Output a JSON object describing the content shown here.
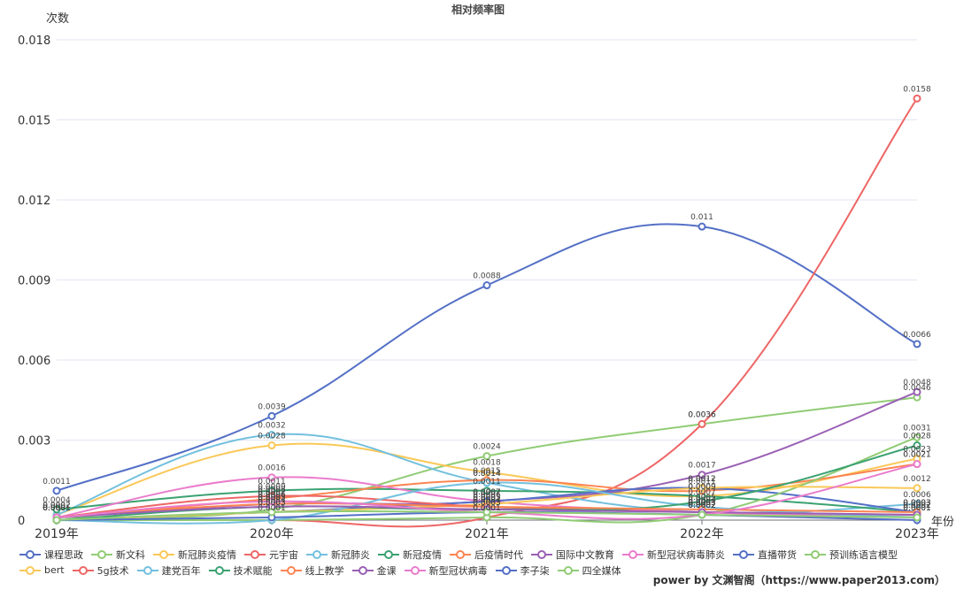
{
  "chart_data": {
    "type": "line",
    "title": "相对频率图",
    "ylabel": "次数",
    "xlabel": "年份",
    "categories": [
      "2019年",
      "2020年",
      "2021年",
      "2022年",
      "2023年"
    ],
    "yticks": [
      "0",
      "0.003",
      "0.006",
      "0.009",
      "0.012",
      "0.015",
      "0.018"
    ],
    "ylim": [
      0,
      0.018
    ],
    "series": [
      {
        "name": "课程思政",
        "color": "#5470c6",
        "values": [
          0.0011,
          0.0039,
          0.0088,
          0.011,
          0.0066
        ]
      },
      {
        "name": "新文科",
        "color": "#91cc75",
        "values": [
          0.0001,
          0.0004,
          0.0024,
          0.0036,
          0.0046
        ]
      },
      {
        "name": "新冠肺炎疫情",
        "color": "#fac858",
        "values": [
          0.0002,
          0.0028,
          0.0018,
          0.0009,
          0.0023
        ]
      },
      {
        "name": "元宇宙",
        "color": "#ee6666",
        "values": [
          0,
          0,
          0.0001,
          0.0036,
          0.0158
        ]
      },
      {
        "name": "新冠肺炎",
        "color": "#73c0de",
        "values": [
          0.0002,
          0.0032,
          0.0014,
          0.0003,
          0.0006
        ]
      },
      {
        "name": "新冠疫情",
        "color": "#3ba272",
        "values": [
          0.0004,
          0.0011,
          0.0011,
          0.0009,
          0.0003
        ]
      },
      {
        "name": "后疫情时代",
        "color": "#fc8452",
        "values": [
          0.0001,
          0.0008,
          0.0015,
          0.0011,
          0.0021
        ]
      },
      {
        "name": "国际中文教育",
        "color": "#9a60b4",
        "values": [
          0.0001,
          0.0006,
          0.0007,
          0.0017,
          0.0048
        ]
      },
      {
        "name": "新型冠状病毒肺炎",
        "color": "#ea7ccc",
        "values": [
          0.0001,
          0.0016,
          0.0007,
          0.0003,
          0.0001
        ]
      },
      {
        "name": "直播带货",
        "color": "#5470c6",
        "values": [
          0,
          0.0003,
          0.0007,
          0.0012,
          0.0003
        ]
      },
      {
        "name": "预训练语言模型",
        "color": "#91cc75",
        "values": [
          0,
          0,
          0.0001,
          0.0002,
          0.0031
        ]
      },
      {
        "name": "bert",
        "color": "#fac858",
        "values": [
          0,
          0.0003,
          0.0006,
          0.0012,
          0.0012
        ]
      },
      {
        "name": "5g技术",
        "color": "#ee6666",
        "values": [
          0.0001,
          0.0009,
          0.0005,
          0.0003,
          0.0002
        ]
      },
      {
        "name": "建党百年",
        "color": "#73c0de",
        "values": [
          0,
          0,
          0.0014,
          0.0005,
          0.0001
        ]
      },
      {
        "name": "技术赋能",
        "color": "#3ba272",
        "values": [
          0,
          0.0005,
          0.0004,
          0.0007,
          0.0028
        ]
      },
      {
        "name": "线上教学",
        "color": "#fc8452",
        "values": [
          0.0001,
          0.0006,
          0.0005,
          0.0004,
          0.0003
        ]
      },
      {
        "name": "金课",
        "color": "#9a60b4",
        "values": [
          0.0001,
          0.0005,
          0.0004,
          0.0003,
          0.0002
        ]
      },
      {
        "name": "新型冠状病毒",
        "color": "#ea7ccc",
        "values": [
          0.0001,
          0.0007,
          0.0003,
          0.0002,
          0.0021
        ]
      },
      {
        "name": "李子柒",
        "color": "#5470c6",
        "values": [
          0,
          0.0001,
          0.0003,
          0.0002,
          0
        ]
      },
      {
        "name": "四全媒体",
        "color": "#91cc75",
        "values": [
          0,
          0.0003,
          0.0003,
          0.0002,
          0.0001
        ]
      }
    ],
    "footer": "power by 文渊智阁（https://www.paper2013.com）"
  }
}
